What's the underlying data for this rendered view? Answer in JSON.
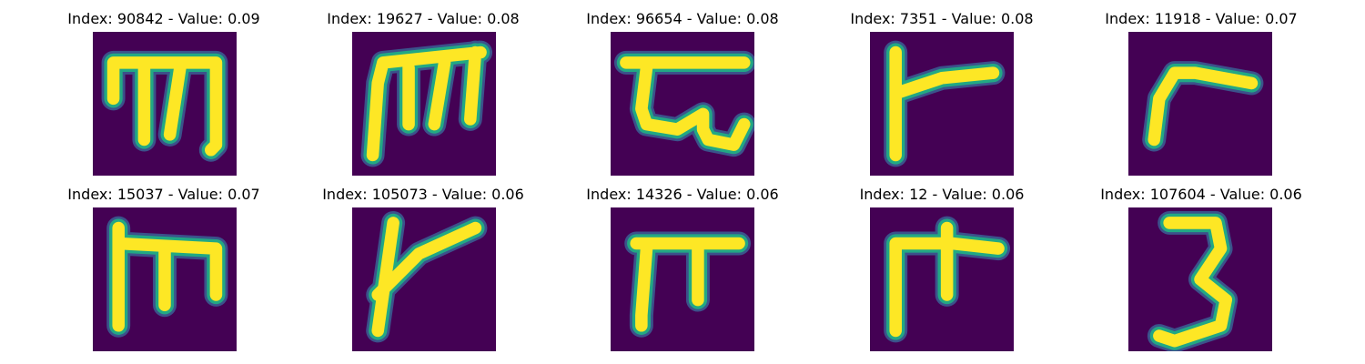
{
  "figure": {
    "panels": [
      {
        "title": "Index: 90842 - Value: 0.09",
        "glyph": "glyph-m-open-icon"
      },
      {
        "title": "Index: 19627 - Value: 0.08",
        "glyph": "glyph-m-bold-icon"
      },
      {
        "title": "Index: 96654 - Value: 0.08",
        "glyph": "glyph-hooked-bar-icon"
      },
      {
        "title": "Index: 7351 - Value: 0.08",
        "glyph": "glyph-flag-icon"
      },
      {
        "title": "Index: 11918 - Value: 0.07",
        "glyph": "glyph-hook-icon"
      },
      {
        "title": "Index: 15037 - Value: 0.07",
        "glyph": "glyph-m-square-icon"
      },
      {
        "title": "Index: 105073 - Value: 0.06",
        "glyph": "glyph-slant-y-icon"
      },
      {
        "title": "Index: 14326 - Value: 0.06",
        "glyph": "glyph-pi-icon"
      },
      {
        "title": "Index: 12 - Value: 0.06",
        "glyph": "glyph-t-branch-icon"
      },
      {
        "title": "Index: 107604 - Value: 0.06",
        "glyph": "glyph-three-icon"
      }
    ],
    "colors": {
      "background": "#440154",
      "stroke_core": "#fde725",
      "stroke_edge": "#22a884",
      "stroke_halo": "#3b528b"
    }
  }
}
